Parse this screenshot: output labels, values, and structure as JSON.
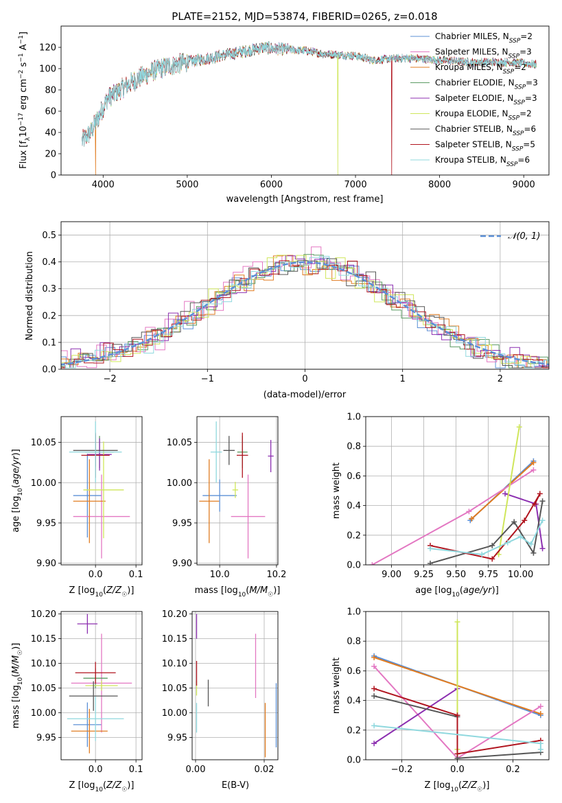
{
  "colors": {
    "c1": "#5b8fd6",
    "c2": "#e377c2",
    "c3": "#e07b20",
    "c4": "#5a9a62",
    "c5": "#8c2fb0",
    "c6": "#cfe65a",
    "c7": "#555555",
    "c8": "#b0141e",
    "c9": "#8fd8de"
  },
  "chart_data": [
    {
      "id": "spectrum",
      "type": "line",
      "title": "PLATE=2152, MJD=53874, FIBERID=0265, z=0.018",
      "xlabel": "wavelength [Angstrom, rest frame]",
      "ylabel": "Flux [f_λ10⁻¹⁷ erg cm⁻² s⁻¹ A⁻¹]",
      "xlim": [
        3500,
        9300
      ],
      "ylim": [
        0,
        140
      ],
      "xticks": [
        4000,
        5000,
        6000,
        7000,
        8000,
        9000
      ],
      "yticks": [
        0,
        20,
        40,
        60,
        80,
        100,
        120
      ],
      "grid": false,
      "legend_position": "upper right",
      "series": [
        {
          "name": "Chabrier MILES, N_SSP=2"
        },
        {
          "name": "Salpeter MILES, N_SSP=3"
        },
        {
          "name": "Kroupa MILES, N_SSP=2"
        },
        {
          "name": "Chabrier ELODIE, N_SSP=3"
        },
        {
          "name": "Salpeter ELODIE, N_SSP=3"
        },
        {
          "name": "Kroupa ELODIE, N_SSP=2"
        },
        {
          "name": "Chabrier STELIB, N_SSP=6"
        },
        {
          "name": "Salpeter STELIB, N_SSP=5"
        },
        {
          "name": "Kroupa STELIB, N_SSP=6"
        }
      ],
      "continuum": {
        "x": [
          3750,
          3850,
          3950,
          4050,
          4200,
          4400,
          4600,
          4800,
          5000,
          5200,
          5400,
          5600,
          5800,
          5900,
          6000,
          6200,
          6400,
          6600,
          6800,
          7000,
          7200,
          7400,
          7600,
          7800,
          8000,
          8200,
          8400,
          8600,
          8800,
          9000,
          9150
        ],
        "y": [
          32,
          40,
          55,
          72,
          80,
          90,
          98,
          103,
          106,
          109,
          112,
          115,
          118,
          120,
          119,
          118,
          117,
          114,
          113,
          112,
          108,
          109,
          110,
          109,
          108,
          107,
          106,
          106,
          106,
          105,
          104
        ]
      },
      "drops": [
        {
          "x": 3910,
          "series": "Kroupa MILES, N_SSP=2"
        },
        {
          "x": 6790,
          "series": "Kroupa ELODIE, N_SSP=2"
        },
        {
          "x": 7430,
          "series": "Salpeter STELIB, N_SSP=5"
        }
      ]
    },
    {
      "id": "residuals",
      "type": "histogram",
      "xlabel": "(data-model)/error",
      "ylabel": "Normed distribution",
      "xlim": [
        -2.5,
        2.5
      ],
      "ylim": [
        0,
        0.55
      ],
      "xticks": [
        -2,
        -1,
        0,
        1,
        2
      ],
      "yticks": [
        0.0,
        0.1,
        0.2,
        0.3,
        0.4,
        0.5
      ],
      "grid": true,
      "legend": [
        {
          "label": "𝒩(0, 1)"
        }
      ],
      "legend_position": "upper right",
      "bin_width": 0.1,
      "reference_curve": "normal(0,1)"
    },
    {
      "id": "age_vs_Z",
      "type": "errorbar",
      "xlabel": "Z [log₁₀(Z/Z☉)]",
      "ylabel": "age  [log₁₀(age/yr)]",
      "xlim": [
        -0.085,
        0.115
      ],
      "ylim": [
        9.898,
        10.082
      ],
      "xticks": [
        0.0,
        0.1
      ],
      "yticks": [
        9.9,
        9.95,
        10.0,
        10.05
      ],
      "grid": true,
      "points": [
        {
          "series": "c1",
          "x": -0.02,
          "xerr": 0.035,
          "y": 9.984,
          "yerr": 0.052
        },
        {
          "series": "c2",
          "x": 0.015,
          "xerr": 0.07,
          "y": 9.958,
          "yerr": 0.052
        },
        {
          "series": "c3",
          "x": -0.015,
          "xerr": 0.04,
          "y": 9.977,
          "yerr": 0.052
        },
        {
          "series": "c4",
          "x": 0.01,
          "xerr": 0.035,
          "y": 10.038,
          "yerr": 0.02
        },
        {
          "series": "c5",
          "x": 0.01,
          "xerr": 0.03,
          "y": 10.035,
          "yerr": 0.02
        },
        {
          "series": "c6",
          "x": 0.02,
          "xerr": 0.05,
          "y": 9.991,
          "yerr": 0.06
        },
        {
          "series": "c7",
          "x": 0.0,
          "xerr": 0.055,
          "y": 10.04,
          "yerr": 0.02
        },
        {
          "series": "c8",
          "x": 0.0,
          "xerr": 0.035,
          "y": 10.034,
          "yerr": 0.028
        },
        {
          "series": "c9",
          "x": 0.0,
          "xerr": 0.065,
          "y": 10.038,
          "yerr": 0.038
        }
      ]
    },
    {
      "id": "age_vs_mass",
      "type": "errorbar",
      "xlabel": "mass [log₁₀(M/M☉)]",
      "ylabel": "",
      "xlim": [
        9.92,
        10.205
      ],
      "ylim": [
        9.898,
        10.082
      ],
      "xticks": [
        10.0,
        10.2
      ],
      "yticks": [
        9.9,
        9.95,
        10.0,
        10.05
      ],
      "grid": true,
      "points": [
        {
          "series": "c1",
          "x": 10.0,
          "xerr": 0.06,
          "y": 9.984,
          "yerr": 0.02
        },
        {
          "series": "c2",
          "x": 10.1,
          "xerr": 0.06,
          "y": 9.958,
          "yerr": 0.052
        },
        {
          "series": "c3",
          "x": 9.963,
          "xerr": 0.035,
          "y": 9.977,
          "yerr": 0.052
        },
        {
          "series": "c4",
          "x": 10.08,
          "xerr": 0.018,
          "y": 10.038,
          "yerr": 0.02
        },
        {
          "series": "c5",
          "x": 10.18,
          "xerr": 0.01,
          "y": 10.033,
          "yerr": 0.02
        },
        {
          "series": "c6",
          "x": 10.055,
          "xerr": 0.01,
          "y": 9.991,
          "yerr": 0.01
        },
        {
          "series": "c7",
          "x": 10.033,
          "xerr": 0.02,
          "y": 10.04,
          "yerr": 0.018
        },
        {
          "series": "c8",
          "x": 10.08,
          "xerr": 0.02,
          "y": 10.034,
          "yerr": 0.028
        },
        {
          "series": "c9",
          "x": 9.988,
          "xerr": 0.02,
          "y": 10.038,
          "yerr": 0.038
        }
      ]
    },
    {
      "id": "weight_vs_age",
      "type": "line",
      "xlabel": "age  [log₁₀(age/yr)]",
      "ylabel": "mass weight",
      "xlim": [
        8.8,
        10.22
      ],
      "ylim": [
        0,
        1.0
      ],
      "xticks": [
        9.0,
        9.25,
        9.5,
        9.75,
        10.0
      ],
      "yticks": [
        0.0,
        0.2,
        0.4,
        0.6,
        0.8,
        1.0
      ],
      "grid": true,
      "series": [
        {
          "color": "c1",
          "x": [
            9.61,
            10.1
          ],
          "y": [
            0.3,
            0.7
          ]
        },
        {
          "color": "c3",
          "x": [
            9.62,
            10.1
          ],
          "y": [
            0.31,
            0.69
          ]
        },
        {
          "color": "c2",
          "x": [
            8.85,
            9.6,
            10.1
          ],
          "y": [
            0.0,
            0.36,
            0.64
          ]
        },
        {
          "color": "c5",
          "x": [
            9.88,
            10.12,
            10.17
          ],
          "y": [
            0.48,
            0.41,
            0.11
          ]
        },
        {
          "color": "c6",
          "x": [
            9.83,
            9.99
          ],
          "y": [
            0.07,
            0.93
          ]
        },
        {
          "color": "c7",
          "x": [
            9.3,
            9.78,
            9.95,
            10.1,
            10.17
          ],
          "y": [
            0.01,
            0.13,
            0.29,
            0.08,
            0.43
          ]
        },
        {
          "color": "c8",
          "x": [
            9.3,
            9.78,
            10.03,
            10.15,
            10.11
          ],
          "y": [
            0.13,
            0.04,
            0.3,
            0.48,
            0.41
          ]
        },
        {
          "color": "c9",
          "x": [
            9.3,
            9.7,
            9.9,
            10.0,
            10.08,
            10.17
          ],
          "y": [
            0.11,
            0.07,
            0.15,
            0.19,
            0.14,
            0.3
          ]
        }
      ]
    },
    {
      "id": "mass_vs_Z",
      "type": "errorbar",
      "xlabel": "Z [log₁₀(Z/Z☉)]",
      "ylabel": "mass [log₁₀(M/M☉)]",
      "xlim": [
        -0.085,
        0.115
      ],
      "ylim": [
        9.905,
        10.205
      ],
      "xticks": [
        0.0,
        0.1
      ],
      "yticks": [
        9.95,
        10.0,
        10.05,
        10.1,
        10.15,
        10.2
      ],
      "grid": true,
      "points": [
        {
          "series": "c1",
          "x": -0.02,
          "xerr": 0.035,
          "y": 9.976,
          "yerr": 0.045
        },
        {
          "series": "c2",
          "x": 0.015,
          "xerr": 0.075,
          "y": 10.06,
          "yerr": 0.1
        },
        {
          "series": "c3",
          "x": -0.015,
          "xerr": 0.045,
          "y": 9.963,
          "yerr": 0.045
        },
        {
          "series": "c4",
          "x": 0.0,
          "xerr": 0.03,
          "y": 10.07,
          "yerr": 0.02
        },
        {
          "series": "c5",
          "x": -0.02,
          "xerr": 0.025,
          "y": 10.18,
          "yerr": 0.02
        },
        {
          "series": "c6",
          "x": 0.015,
          "xerr": 0.04,
          "y": 10.055,
          "yerr": 0.01
        },
        {
          "series": "c7",
          "x": -0.005,
          "xerr": 0.06,
          "y": 10.034,
          "yerr": 0.03
        },
        {
          "series": "c8",
          "x": 0.0,
          "xerr": 0.05,
          "y": 10.081,
          "yerr": 0.022
        },
        {
          "series": "c9",
          "x": 0.0,
          "xerr": 0.07,
          "y": 9.988,
          "yerr": 0.045
        }
      ]
    },
    {
      "id": "mass_vs_ebv",
      "type": "errorbar",
      "xlabel": "E(B-V)",
      "ylabel": "",
      "xlim": [
        -0.001,
        0.024
      ],
      "ylim": [
        9.905,
        10.205
      ],
      "xticks": [
        0.0,
        0.02
      ],
      "yticks": [
        9.95,
        10.0,
        10.05,
        10.1,
        10.15,
        10.2
      ],
      "grid": true,
      "points": [
        {
          "series": "c1",
          "x": 0.0235,
          "y": 9.995,
          "yerr": 0.065
        },
        {
          "series": "c2",
          "x": 0.0175,
          "y": 10.095,
          "yerr": 0.065
        },
        {
          "series": "c3",
          "x": 0.0203,
          "y": 9.965,
          "yerr": 0.055
        },
        {
          "series": "c5",
          "x": 0.0003,
          "y": 10.175,
          "yerr": 0.025
        },
        {
          "series": "c6",
          "x": 0.0003,
          "y": 10.05,
          "yerr": 0.015
        },
        {
          "series": "c7",
          "x": 0.0037,
          "y": 10.04,
          "yerr": 0.027
        },
        {
          "series": "c8",
          "x": 0.0003,
          "y": 10.08,
          "yerr": 0.025
        },
        {
          "series": "c9",
          "x": 0.0003,
          "y": 9.99,
          "yerr": 0.03
        }
      ]
    },
    {
      "id": "weight_vs_Z",
      "type": "line",
      "xlabel": "Z [log₁₀(Z/Z☉)]",
      "ylabel": "mass weight",
      "xlim": [
        -0.33,
        0.33
      ],
      "ylim": [
        0,
        1.0
      ],
      "xticks": [
        -0.2,
        0.0,
        0.2
      ],
      "yticks": [
        0.0,
        0.2,
        0.4,
        0.6,
        0.8,
        1.0
      ],
      "grid": true,
      "series": [
        {
          "color": "c1",
          "x": [
            -0.3,
            0.3
          ],
          "y": [
            0.7,
            0.3
          ]
        },
        {
          "color": "c3",
          "x": [
            -0.3,
            0.3
          ],
          "y": [
            0.69,
            0.31
          ]
        },
        {
          "color": "c2",
          "x": [
            -0.3,
            0.0,
            0.3
          ],
          "y": [
            0.63,
            0.01,
            0.36
          ]
        },
        {
          "color": "c5",
          "x": [
            -0.3,
            0.0
          ],
          "y": [
            0.11,
            0.48
          ]
        },
        {
          "color": "c6",
          "x": [
            0.0,
            0.0
          ],
          "y": [
            0.07,
            0.93
          ]
        },
        {
          "color": "c7",
          "x": [
            -0.3,
            0.0,
            0.0,
            0.3
          ],
          "y": [
            0.43,
            0.29,
            0.01,
            0.05
          ]
        },
        {
          "color": "c8",
          "x": [
            -0.3,
            0.0,
            0.0,
            0.3
          ],
          "y": [
            0.48,
            0.3,
            0.04,
            0.13
          ]
        },
        {
          "color": "c9",
          "x": [
            -0.3,
            0.3,
            0.3
          ],
          "y": [
            0.23,
            0.11,
            0.07
          ]
        }
      ]
    }
  ]
}
